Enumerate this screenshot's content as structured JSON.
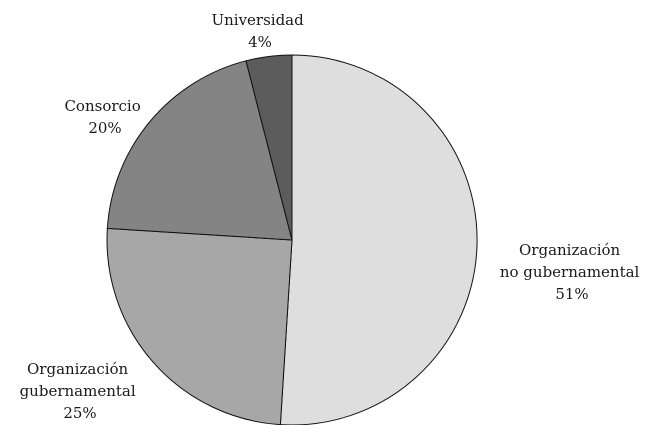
{
  "chart_data": {
    "type": "pie",
    "title": "",
    "slices": [
      {
        "label_lines": [
          "Organización",
          "no gubernamental"
        ],
        "percent_label": "51%",
        "value": 51,
        "color": "#dedede"
      },
      {
        "label_lines": [
          "Organización",
          "gubernamental"
        ],
        "percent_label": "25%",
        "value": 25,
        "color": "#a7a7a7"
      },
      {
        "label_lines": [
          "Consorcio"
        ],
        "percent_label": "20%",
        "value": 20,
        "color": "#848484"
      },
      {
        "label_lines": [
          "Universidad"
        ],
        "percent_label": "4%",
        "value": 4,
        "color": "#5c5c5c"
      }
    ],
    "start_angle_deg": 0,
    "direction": "clockwise",
    "legend": "none"
  }
}
